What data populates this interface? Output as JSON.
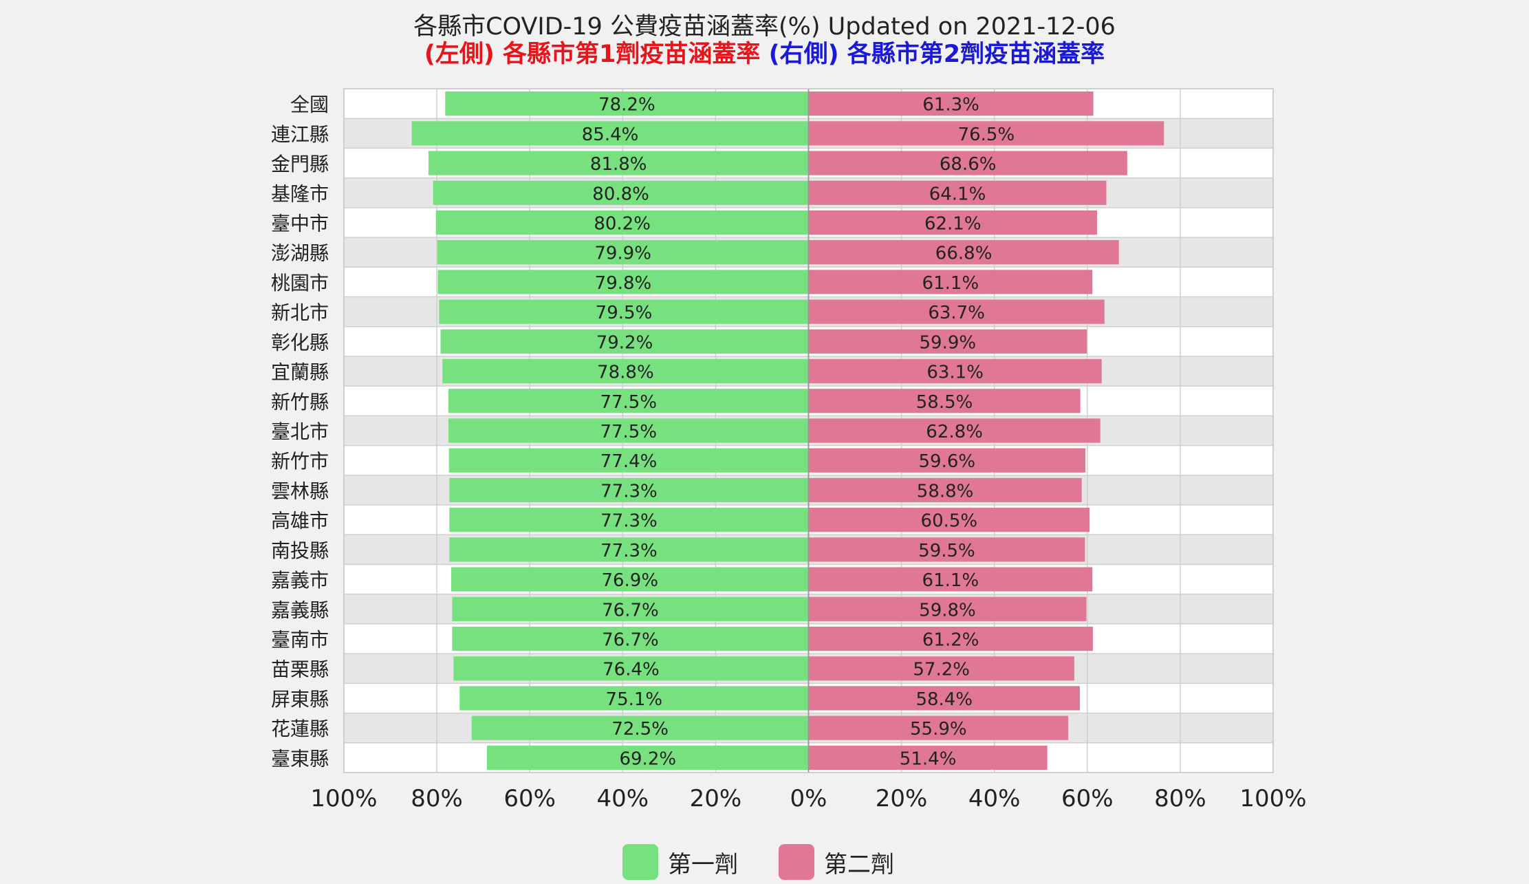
{
  "chart_data": {
    "type": "bar",
    "orientation": "horizontal-diverging",
    "title": "各縣市COVID-19 公費疫苗涵蓋率(%) Updated on 2021-12-06",
    "subtitle": {
      "left_tag": "(左側)",
      "left_text": "各縣市第1劑疫苗涵蓋率",
      "right_tag": "(右側)",
      "right_text": "各縣市第2劑疫苗涵蓋率"
    },
    "categories": [
      "全國",
      "連江縣",
      "金門縣",
      "基隆市",
      "臺中市",
      "澎湖縣",
      "桃園市",
      "新北市",
      "彰化縣",
      "宜蘭縣",
      "新竹縣",
      "臺北市",
      "新竹市",
      "雲林縣",
      "高雄市",
      "南投縣",
      "嘉義市",
      "嘉義縣",
      "臺南市",
      "苗栗縣",
      "屏東縣",
      "花蓮縣",
      "臺東縣"
    ],
    "series": [
      {
        "name": "第一劑",
        "side": "left",
        "color": "#77e07f",
        "values": [
          78.2,
          85.4,
          81.8,
          80.8,
          80.2,
          79.9,
          79.8,
          79.5,
          79.2,
          78.8,
          77.5,
          77.5,
          77.4,
          77.3,
          77.3,
          77.3,
          76.9,
          76.7,
          76.7,
          76.4,
          75.1,
          72.5,
          69.2
        ]
      },
      {
        "name": "第二劑",
        "side": "right",
        "color": "#e07895",
        "values": [
          61.3,
          76.5,
          68.6,
          64.1,
          62.1,
          66.8,
          61.1,
          63.7,
          59.9,
          63.1,
          58.5,
          62.8,
          59.6,
          58.8,
          60.5,
          59.5,
          61.1,
          59.8,
          61.2,
          57.2,
          58.4,
          55.9,
          51.4
        ]
      }
    ],
    "x_ticks": [
      "100%",
      "80%",
      "60%",
      "40%",
      "20%",
      "0%",
      "20%",
      "40%",
      "60%",
      "80%",
      "100%"
    ],
    "xlim": [
      -100,
      100
    ],
    "grid": true,
    "legend": "bottom-center"
  }
}
